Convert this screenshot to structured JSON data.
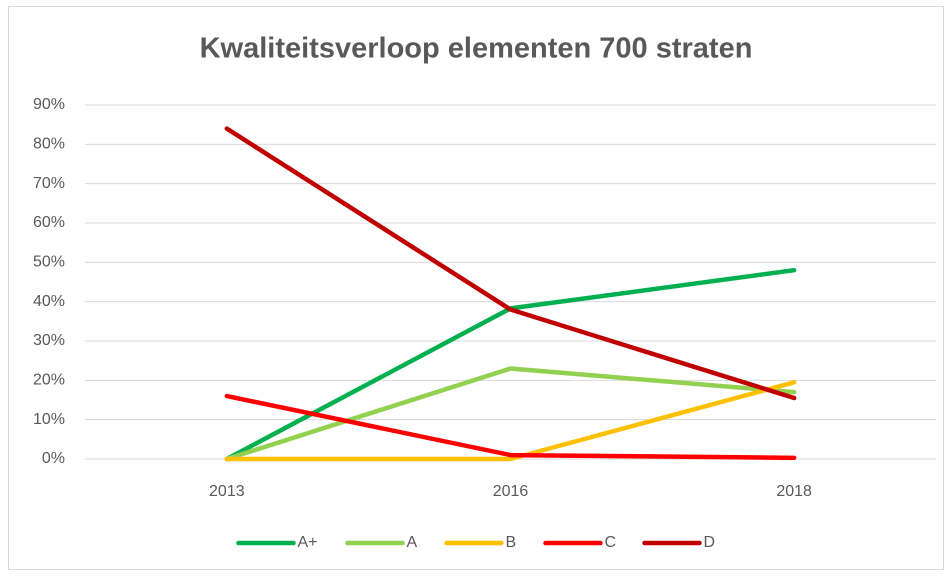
{
  "chart_data": {
    "type": "line",
    "title": "Kwaliteitsverloop elementen 700 straten",
    "categories": [
      "2013",
      "2016",
      "2018"
    ],
    "series": [
      {
        "name": "A+",
        "color": "#00b050",
        "values": [
          0,
          38.3,
          48
        ]
      },
      {
        "name": "A",
        "color": "#92d050",
        "values": [
          0,
          23,
          17
        ]
      },
      {
        "name": "B",
        "color": "#ffc000",
        "values": [
          0,
          0,
          19.5
        ]
      },
      {
        "name": "C",
        "color": "#ff0000",
        "values": [
          16,
          1,
          0.3
        ]
      },
      {
        "name": "D",
        "color": "#c00000",
        "values": [
          84,
          38,
          15.5
        ]
      }
    ],
    "ylim": [
      0,
      90
    ],
    "yticks": [
      {
        "value": 0,
        "label": "0%"
      },
      {
        "value": 10,
        "label": "10%"
      },
      {
        "value": 20,
        "label": "20%"
      },
      {
        "value": 30,
        "label": "30%"
      },
      {
        "value": 40,
        "label": "40%"
      },
      {
        "value": 50,
        "label": "50%"
      },
      {
        "value": 60,
        "label": "60%"
      },
      {
        "value": 70,
        "label": "70%"
      },
      {
        "value": 80,
        "label": "80%"
      },
      {
        "value": 90,
        "label": "90%"
      }
    ],
    "grid": true,
    "legend": "bottom"
  }
}
